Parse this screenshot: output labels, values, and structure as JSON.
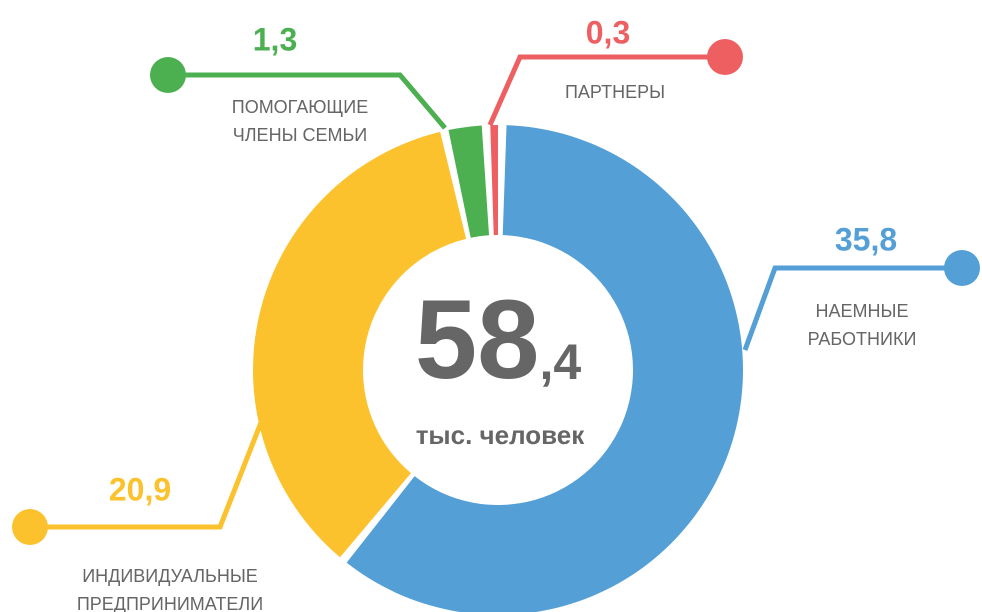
{
  "chart_data": {
    "type": "donut",
    "categories": [
      "НАЕМНЫЕ\nРАБОТНИКИ",
      "ИНДИВИДУАЛЬНЫЕ\nПРЕДПРИНИМАТЕЛИ",
      "ПОМОГАЮЩИЕ\nЧЛЕНЫ СЕМЬИ",
      "ПАРТНЕРЫ"
    ],
    "values": [
      35.8,
      20.9,
      1.3,
      0.3
    ],
    "value_labels": [
      "35,8",
      "20,9",
      "1,3",
      "0,3"
    ],
    "colors": [
      "#539fd6",
      "#fcc22e",
      "#4caf50",
      "#ee5f61"
    ],
    "center_label_parts": [
      "58",
      ",4"
    ],
    "center_subtitle": "тыс. человек"
  }
}
